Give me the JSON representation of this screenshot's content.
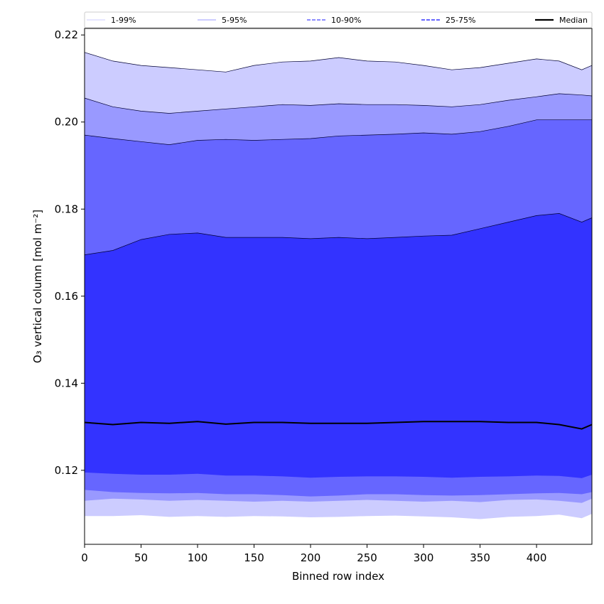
{
  "chart_data": {
    "type": "area",
    "title": "",
    "xlabel": "Binned row index",
    "ylabel": "O₃ vertical column [mol m⁻²]",
    "xlim": [
      0,
      449
    ],
    "ylim": [
      0.103,
      0.2215
    ],
    "xticks": [
      0,
      50,
      100,
      150,
      200,
      250,
      300,
      350,
      400
    ],
    "yticks": [
      0.12,
      0.14,
      0.16,
      0.18,
      0.2,
      0.22
    ],
    "ytick_labels": [
      "0.12",
      "0.14",
      "0.16",
      "0.18",
      "0.20",
      "0.22"
    ],
    "grid": false,
    "legend_position": "top",
    "legend": [
      {
        "label": "1-99%",
        "color": "#ccccff",
        "style": "thin"
      },
      {
        "label": "5-95%",
        "color": "#9999ff",
        "style": "thin"
      },
      {
        "label": "10-90%",
        "color": "#6666ff",
        "style": "dashed"
      },
      {
        "label": "25-75%",
        "color": "#3333ff",
        "style": "dashed"
      },
      {
        "label": "Median",
        "color": "#000000",
        "style": "solid"
      }
    ],
    "x": [
      0,
      25,
      50,
      75,
      100,
      125,
      150,
      175,
      200,
      225,
      250,
      275,
      300,
      325,
      350,
      375,
      400,
      420,
      440,
      449
    ],
    "bands": [
      {
        "name": "1-99%",
        "color": "#ccccff",
        "lower": [
          0.1095,
          0.1095,
          0.1097,
          0.1093,
          0.1095,
          0.1093,
          0.1095,
          0.1094,
          0.1092,
          0.1093,
          0.1095,
          0.1096,
          0.1094,
          0.1092,
          0.1088,
          0.1093,
          0.1095,
          0.1098,
          0.109,
          0.11
        ],
        "upper": [
          0.216,
          0.214,
          0.213,
          0.2125,
          0.212,
          0.2115,
          0.213,
          0.2138,
          0.214,
          0.2148,
          0.214,
          0.2138,
          0.213,
          0.212,
          0.2125,
          0.2135,
          0.2145,
          0.214,
          0.212,
          0.213
        ]
      },
      {
        "name": "5-95%",
        "color": "#9999ff",
        "lower": [
          0.113,
          0.1135,
          0.1133,
          0.113,
          0.1132,
          0.113,
          0.1128,
          0.113,
          0.1128,
          0.113,
          0.1132,
          0.113,
          0.1128,
          0.113,
          0.1127,
          0.1132,
          0.1133,
          0.113,
          0.1125,
          0.1135
        ],
        "upper": [
          0.2055,
          0.2035,
          0.2025,
          0.202,
          0.2025,
          0.203,
          0.2035,
          0.204,
          0.2038,
          0.2042,
          0.204,
          0.204,
          0.2038,
          0.2035,
          0.204,
          0.205,
          0.2058,
          0.2065,
          0.2062,
          0.206
        ]
      },
      {
        "name": "10-90%",
        "color": "#6666ff",
        "lower": [
          0.1155,
          0.115,
          0.1148,
          0.1147,
          0.1148,
          0.1145,
          0.1145,
          0.1143,
          0.114,
          0.1142,
          0.1145,
          0.1145,
          0.1143,
          0.1142,
          0.1143,
          0.1145,
          0.1147,
          0.1148,
          0.1145,
          0.115
        ],
        "upper": [
          0.197,
          0.1962,
          0.1955,
          0.1948,
          0.1958,
          0.196,
          0.1958,
          0.196,
          0.1962,
          0.1968,
          0.197,
          0.1972,
          0.1975,
          0.1972,
          0.1978,
          0.199,
          0.2005,
          0.2005,
          0.2005,
          0.2005
        ]
      },
      {
        "name": "25-75%",
        "color": "#3333ff",
        "lower": [
          0.1195,
          0.1192,
          0.119,
          0.119,
          0.1192,
          0.1188,
          0.1188,
          0.1186,
          0.1183,
          0.1185,
          0.1186,
          0.1186,
          0.1185,
          0.1183,
          0.1185,
          0.1186,
          0.1188,
          0.1187,
          0.1182,
          0.119
        ],
        "upper": [
          0.1695,
          0.1705,
          0.173,
          0.1742,
          0.1745,
          0.1735,
          0.1735,
          0.1735,
          0.1732,
          0.1735,
          0.1732,
          0.1735,
          0.1738,
          0.174,
          0.1755,
          0.177,
          0.1785,
          0.179,
          0.177,
          0.178
        ]
      }
    ],
    "median": {
      "name": "Median",
      "color": "#000000",
      "values": [
        0.131,
        0.1305,
        0.131,
        0.1308,
        0.1312,
        0.1306,
        0.131,
        0.131,
        0.1308,
        0.1308,
        0.1308,
        0.131,
        0.1312,
        0.1312,
        0.1312,
        0.131,
        0.131,
        0.1305,
        0.1295,
        0.1305
      ]
    }
  }
}
